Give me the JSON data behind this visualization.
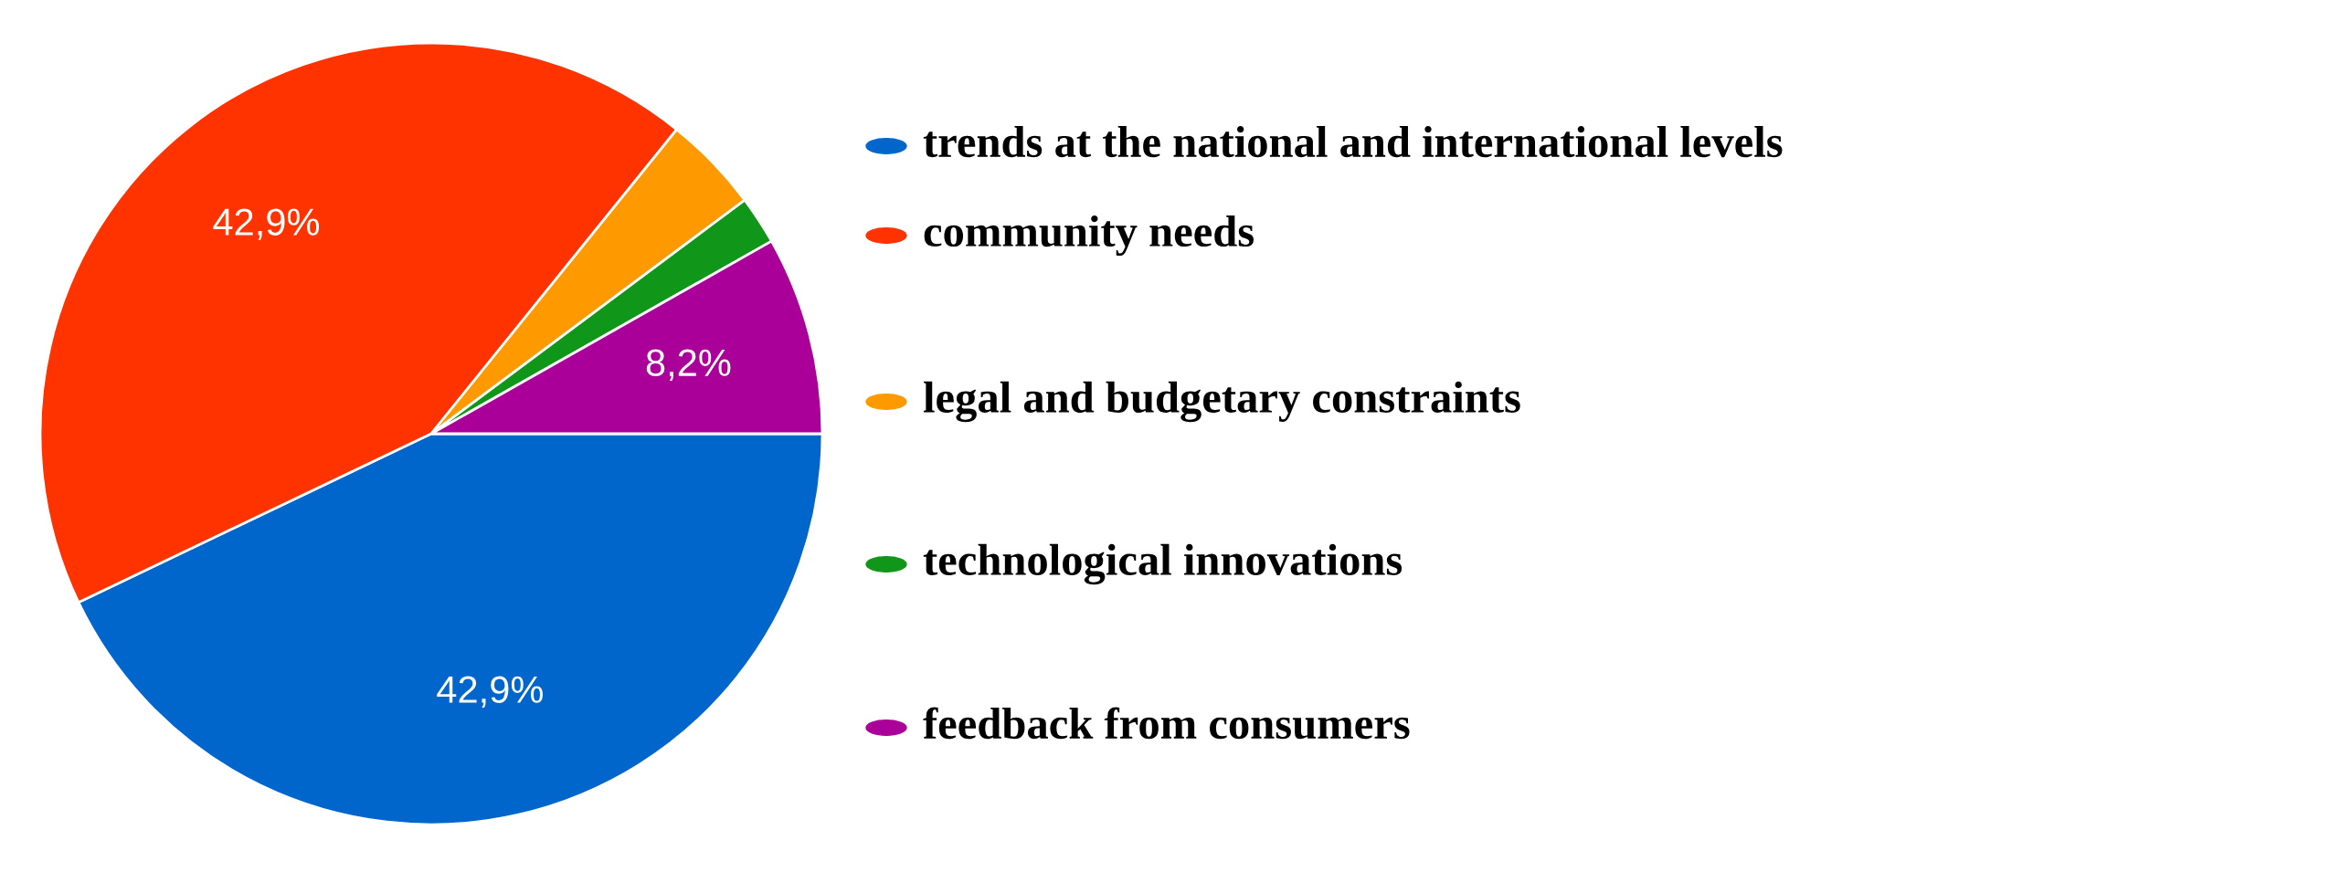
{
  "chart_data": {
    "type": "pie",
    "categories": [
      "trends at the national and international levels",
      "community needs",
      "legal and budgetary constraints",
      "technological innovations",
      "feedback from consumers"
    ],
    "values": [
      42.9,
      42.9,
      4.0,
      2.0,
      8.2
    ],
    "colors": [
      "#0066cc",
      "#ff3300",
      "#ff9900",
      "#109618",
      "#aa0099"
    ],
    "value_labels": [
      "42,9%",
      "42,9%",
      null,
      null,
      "8,2%"
    ],
    "legend": "right"
  }
}
